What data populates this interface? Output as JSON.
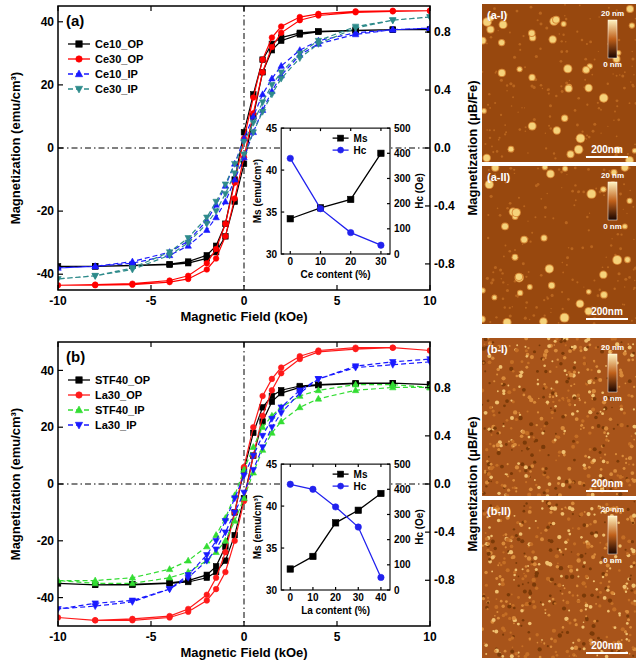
{
  "chart_data": [
    {
      "type": "line",
      "title": "(a)",
      "x_label": "Magnetic Field (kOe)",
      "y_label": "Magnetization (emu/cm³)",
      "y2_label": "Magnetization (μB/Fe)",
      "x": [
        10,
        8,
        6,
        4,
        3,
        2,
        1.5,
        1,
        0.5,
        0,
        -0.5,
        -1,
        -1.5,
        -2,
        -3,
        -4,
        -6,
        -8,
        -10,
        -8,
        -6,
        -4,
        -3,
        -2,
        -1.5,
        -1,
        -0.5,
        0,
        0.5,
        1,
        1.5,
        2,
        3,
        4,
        6,
        8,
        10
      ],
      "xlim": [
        -10,
        10
      ],
      "xticks": [
        -10,
        -5,
        0,
        5,
        10
      ],
      "ylim": [
        -45,
        45
      ],
      "yticks": [
        -40,
        -20,
        0,
        20,
        40
      ],
      "y2lim": [
        -0.98,
        0.98
      ],
      "y2ticks": [
        -0.8,
        -0.4,
        {
          "value": 0,
          "label": "0.0"
        },
        0.4,
        0.8
      ],
      "legend": "upper left",
      "series": [
        {
          "name": "Ce10_OP",
          "color": "#000000",
          "marker": "square",
          "line_style": "solid",
          "values": [
            37.5,
            37.5,
            37.3,
            37,
            36.5,
            35,
            33,
            28,
            17,
            5,
            -10,
            -24,
            -31,
            -34,
            -36,
            -36.8,
            -37.2,
            -37.5,
            -37.5,
            -37.5,
            -37.3,
            -37,
            -36.5,
            -35,
            -33,
            -28,
            -17,
            -5,
            10,
            24,
            31,
            34,
            36,
            36.8,
            37.2,
            37.5,
            37.5
          ]
        },
        {
          "name": "Ce30_OP",
          "color": "#ff0000",
          "marker": "circle",
          "line_style": "solid",
          "values": [
            43.5,
            43.5,
            43.3,
            42.5,
            41.5,
            38.5,
            35,
            28,
            16,
            3,
            -11,
            -24,
            -32,
            -36.5,
            -40.5,
            -42,
            -43,
            -43.3,
            -43.5,
            -43.5,
            -43.3,
            -42.5,
            -41.5,
            -38.5,
            -35,
            -28,
            -16,
            -3,
            11,
            24,
            32,
            36.5,
            40.5,
            42,
            43,
            43.3,
            43.5
          ]
        },
        {
          "name": "Ce10_IP",
          "color": "#1a1aff",
          "marker": "triangle",
          "line_style": "dash",
          "values": [
            38,
            37.5,
            36.5,
            34,
            31,
            26,
            22,
            17,
            10,
            3,
            -5,
            -12,
            -18,
            -23,
            -29.5,
            -33,
            -36,
            -37.5,
            -38,
            -37.5,
            -36.5,
            -34,
            -31,
            -26,
            -22,
            -17,
            -10,
            -3,
            5,
            12,
            18,
            23,
            29.5,
            33,
            36,
            37.5,
            38
          ]
        },
        {
          "name": "Ce30_IP",
          "color": "#2e8b8b",
          "marker": "triangle_down",
          "line_style": "dash",
          "values": [
            41.5,
            40.5,
            38.5,
            34,
            30,
            24,
            20,
            14.5,
            8,
            2,
            -5,
            -11.5,
            -17,
            -22,
            -28.5,
            -33,
            -38,
            -40.5,
            -41.5,
            -40.5,
            -38.5,
            -34,
            -30,
            -24,
            -20,
            -14.5,
            -8,
            -2,
            5,
            11.5,
            17,
            22,
            28.5,
            33,
            38,
            40.5,
            41.5
          ]
        }
      ]
    },
    {
      "type": "line",
      "x_label": "Ce content (%)",
      "y_label": "Ms (emu/cm³)",
      "y2_label": "Hc (Oe)",
      "x": [
        0,
        10,
        20,
        30
      ],
      "xlim": [
        -3,
        33
      ],
      "xticks": [
        0,
        10,
        20,
        30
      ],
      "ylim": [
        30,
        45
      ],
      "yticks": [
        30,
        35,
        40,
        45
      ],
      "y2lim": [
        0,
        500
      ],
      "y2ticks": [
        0,
        100,
        200,
        300,
        400,
        500
      ],
      "legend": "upper right",
      "series": [
        {
          "name": "Ms",
          "color": "#000000",
          "marker": "square",
          "line_style": "solid",
          "values": [
            34.2,
            35.5,
            36.5,
            42
          ]
        },
        {
          "name": "Hc",
          "color": "#2222ee",
          "marker": "circle",
          "line_style": "solid",
          "axis": "y2",
          "values": [
            380,
            180,
            85,
            35
          ]
        }
      ]
    },
    {
      "type": "line",
      "title": "(b)",
      "x_label": "Magnetic Field (kOe)",
      "y_label": "Magnetization (emu/cm³)",
      "y2_label": "Magnetization (μB/Fe)",
      "x": [
        10,
        8,
        6,
        4,
        3,
        2,
        1.5,
        1,
        0.5,
        0,
        -0.5,
        -1,
        -1.5,
        -2,
        -3,
        -4,
        -6,
        -8,
        -10,
        -8,
        -6,
        -4,
        -3,
        -2,
        -1.5,
        -1,
        -0.5,
        0,
        0.5,
        1,
        1.5,
        2,
        3,
        4,
        6,
        8,
        10
      ],
      "xlim": [
        -10,
        10
      ],
      "xticks": [
        -10,
        -5,
        0,
        5,
        10
      ],
      "ylim": [
        -50,
        50
      ],
      "yticks": [
        -40,
        -20,
        0,
        20,
        40
      ],
      "y2lim": [
        -1.18,
        1.18
      ],
      "y2ticks": [
        -0.8,
        -0.4,
        {
          "value": 0,
          "label": "0.0"
        },
        0.4,
        0.8
      ],
      "legend": "upper left",
      "series": [
        {
          "name": "STF40_OP",
          "color": "#000000",
          "marker": "square",
          "line_style": "solid",
          "values": [
            35,
            35.5,
            35.5,
            35,
            34.5,
            33,
            31,
            27,
            18,
            5,
            -10,
            -22,
            -29,
            -32,
            -34,
            -34.8,
            -35.3,
            -35.5,
            -35,
            -35.5,
            -35.5,
            -35,
            -34.5,
            -33,
            -31,
            -27,
            -18,
            -5,
            10,
            22,
            29,
            32,
            34,
            34.8,
            35.3,
            35.5,
            35
          ]
        },
        {
          "name": "La30_OP",
          "color": "#ff1a1a",
          "marker": "circle",
          "line_style": "solid",
          "values": [
            47,
            48,
            48,
            47,
            45,
            41,
            37,
            31,
            20,
            6,
            -10,
            -24,
            -33,
            -39,
            -44,
            -46.5,
            -47.5,
            -48,
            -47,
            -48,
            -48,
            -47,
            -45,
            -41,
            -37,
            -31,
            -20,
            -6,
            10,
            24,
            33,
            39,
            44,
            46.5,
            47.5,
            48,
            47
          ]
        },
        {
          "name": "STF40_IP",
          "color": "#33dd33",
          "marker": "triangle",
          "line_style": "dash",
          "values": [
            34,
            35,
            35,
            33,
            31,
            27,
            24,
            20,
            13,
            5,
            -4,
            -12,
            -18,
            -22,
            -27,
            -30,
            -33,
            -34,
            -34,
            -35,
            -35,
            -33,
            -31,
            -27,
            -24,
            -20,
            -13,
            -5,
            4,
            12,
            18,
            22,
            27,
            30,
            33,
            34,
            34
          ]
        },
        {
          "name": "La30_IP",
          "color": "#1a1aff",
          "marker": "triangle_down",
          "line_style": "dash",
          "values": [
            43,
            42,
            41,
            37,
            33,
            27,
            23,
            17,
            10,
            3,
            -5,
            -13,
            -20,
            -25,
            -32,
            -37,
            -41.5,
            -43,
            -44,
            -42,
            -41,
            -37,
            -33,
            -27,
            -23,
            -17,
            -10,
            -3,
            5,
            13,
            20,
            25,
            32,
            37,
            41.5,
            43,
            44
          ]
        }
      ]
    },
    {
      "type": "line",
      "x_label": "La content (%)",
      "y_label": "Ms (emu/cm³)",
      "y2_label": "Hc (Oe)",
      "x": [
        0,
        10,
        20,
        30,
        40
      ],
      "xlim": [
        -4,
        44
      ],
      "xticks": [
        0,
        10,
        20,
        30,
        40
      ],
      "ylim": [
        30,
        45
      ],
      "yticks": [
        30,
        35,
        40,
        45
      ],
      "y2lim": [
        0,
        500
      ],
      "y2ticks": [
        0,
        100,
        200,
        300,
        400,
        500
      ],
      "legend": "upper right",
      "series": [
        {
          "name": "Ms",
          "color": "#000000",
          "marker": "square",
          "line_style": "solid",
          "values": [
            32.5,
            34,
            38,
            39.5,
            41.5
          ]
        },
        {
          "name": "Hc",
          "color": "#2222ee",
          "marker": "circle",
          "line_style": "solid",
          "axis": "y2",
          "values": [
            420,
            400,
            330,
            250,
            50
          ]
        }
      ]
    }
  ],
  "afm_images": [
    {
      "label": "(a-I)",
      "colorbar_top": "20 nm",
      "colorbar_bottom": "0 nm",
      "scale_bar": "200nm"
    },
    {
      "label": "(a-II)",
      "colorbar_top": "20 nm",
      "colorbar_bottom": "0 nm",
      "scale_bar": "200nm"
    },
    {
      "label": "(b-I)",
      "colorbar_top": "20 nm",
      "colorbar_bottom": "0 nm",
      "scale_bar": "200nm"
    },
    {
      "label": "(b-II)",
      "colorbar_top": "20 nm",
      "colorbar_bottom": "0 nm",
      "scale_bar": "200nm"
    }
  ]
}
